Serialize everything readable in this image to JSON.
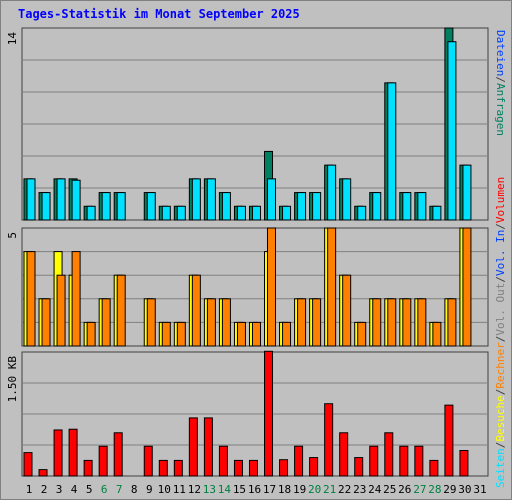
{
  "title": "Tages-Statistik im Monat September 2025",
  "legend": {
    "anfragen": "Anfragen",
    "dateien": "Dateien",
    "seiten": "Seiten",
    "besuche": "Besuche",
    "rechner": "Rechner",
    "out": "Vol. Out",
    "in": "Vol. In",
    "volumen": "Volumen",
    "sep": "/"
  },
  "colors": {
    "anfragen": "#008060",
    "dateien": "#00c0ff",
    "seiten": "#00e0ff",
    "besuche": "#ffff00",
    "rechner": "#ff8000",
    "vol_out": "#808080",
    "vol_in": "#0040ff",
    "volumen": "#ff0000",
    "weekend": "#008040",
    "weekday": "#000000",
    "title": "#0000ff"
  },
  "chart_data": [
    {
      "type": "bar",
      "name": "hits",
      "ymax_label": "14",
      "ylim": [
        0,
        14
      ],
      "categories": [
        "1",
        "2",
        "3",
        "4",
        "5",
        "6",
        "7",
        "8",
        "9",
        "10",
        "11",
        "12",
        "13",
        "14",
        "15",
        "16",
        "17",
        "18",
        "19",
        "20",
        "21",
        "22",
        "23",
        "24",
        "25",
        "26",
        "27",
        "28",
        "29",
        "30",
        "31"
      ],
      "series": [
        {
          "name": "Anfragen",
          "values": [
            3,
            2,
            3,
            3,
            1,
            2,
            2,
            0,
            2,
            1,
            1,
            3,
            3,
            2,
            1,
            1,
            5,
            1,
            2,
            2,
            4,
            3,
            1,
            2,
            10,
            2,
            2,
            1,
            14,
            4,
            0
          ]
        },
        {
          "name": "Dateien",
          "values": [
            3,
            2,
            3,
            3,
            1,
            2,
            2,
            0,
            2,
            1,
            1,
            3,
            3,
            2,
            1,
            1,
            5,
            1,
            2,
            2,
            4,
            3,
            1,
            2,
            10,
            2,
            2,
            1,
            14,
            4,
            0
          ]
        }
      ],
      "series_drawn": [
        {
          "name": "Anfragen",
          "values": [
            3,
            2,
            3,
            3,
            1,
            2,
            2,
            0,
            2,
            1,
            1,
            3,
            3,
            2,
            1,
            1,
            5,
            1,
            2,
            2,
            4,
            3,
            1,
            2,
            10,
            2,
            2,
            1,
            14,
            4,
            0
          ]
        },
        {
          "name": "Seiten",
          "values": [
            3,
            2,
            3,
            2.9,
            1,
            2,
            2,
            0,
            2,
            1,
            1,
            3,
            3,
            2,
            1,
            1,
            3,
            1,
            2,
            2,
            4,
            3,
            1,
            2,
            10,
            2,
            2,
            1,
            13,
            4,
            0
          ]
        }
      ]
    },
    {
      "type": "bar",
      "name": "visits",
      "ymax_label": "5",
      "ylim": [
        0,
        5
      ],
      "categories": [
        "1",
        "2",
        "3",
        "4",
        "5",
        "6",
        "7",
        "8",
        "9",
        "10",
        "11",
        "12",
        "13",
        "14",
        "15",
        "16",
        "17",
        "18",
        "19",
        "20",
        "21",
        "22",
        "23",
        "24",
        "25",
        "26",
        "27",
        "28",
        "29",
        "30",
        "31"
      ],
      "series": [
        {
          "name": "Besuche",
          "values": [
            4,
            2,
            4,
            3,
            1,
            2,
            3,
            0,
            2,
            1,
            1,
            3,
            2,
            2,
            1,
            1,
            4,
            1,
            2,
            2,
            5,
            3,
            1,
            2,
            2,
            2,
            2,
            1,
            2,
            5,
            0
          ]
        },
        {
          "name": "Rechner",
          "values": [
            4,
            2,
            3,
            4,
            1,
            2,
            3,
            0,
            2,
            1,
            1,
            3,
            2,
            2,
            1,
            1,
            5,
            1,
            2,
            2,
            5,
            3,
            1,
            2,
            2,
            2,
            2,
            1,
            2,
            5,
            0
          ]
        }
      ]
    },
    {
      "type": "bar",
      "name": "volume",
      "ymax_label": "1.50 KB",
      "ylim": [
        0,
        1.75
      ],
      "categories": [
        "1",
        "2",
        "3",
        "4",
        "5",
        "6",
        "7",
        "8",
        "9",
        "10",
        "11",
        "12",
        "13",
        "14",
        "15",
        "16",
        "17",
        "18",
        "19",
        "20",
        "21",
        "22",
        "23",
        "24",
        "25",
        "26",
        "27",
        "28",
        "29",
        "30",
        "31"
      ],
      "series": [
        {
          "name": "Volumen",
          "values": [
            0.33,
            0.09,
            0.65,
            0.66,
            0.22,
            0.42,
            0.61,
            0,
            0.42,
            0.22,
            0.22,
            0.82,
            0.82,
            0.42,
            0.22,
            0.22,
            1.76,
            0.23,
            0.42,
            0.26,
            1.02,
            0.61,
            0.26,
            0.42,
            0.61,
            0.42,
            0.42,
            0.22,
            1.0,
            0.36,
            0
          ]
        }
      ]
    }
  ],
  "weekend_days": [
    "6",
    "7",
    "13",
    "14",
    "20",
    "21",
    "27",
    "28"
  ]
}
